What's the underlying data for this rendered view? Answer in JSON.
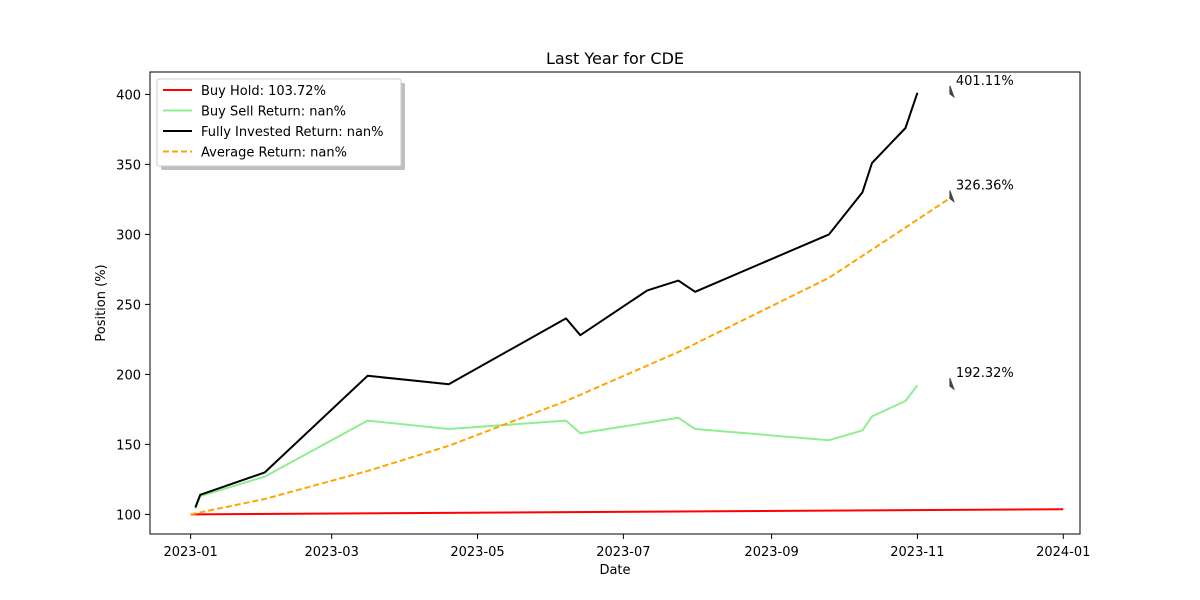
{
  "chart_data": {
    "type": "line",
    "title": "Last Year for CDE",
    "xlabel": "Date",
    "ylabel": "Position (%)",
    "xlim": [
      "2022-12-15",
      "2024-01-08"
    ],
    "ylim": [
      86,
      416
    ],
    "x_ticks": [
      {
        "date": "2023-01-01",
        "label": "2023-01"
      },
      {
        "date": "2023-03-01",
        "label": "2023-03"
      },
      {
        "date": "2023-05-01",
        "label": "2023-05"
      },
      {
        "date": "2023-07-01",
        "label": "2023-07"
      },
      {
        "date": "2023-09-01",
        "label": "2023-09"
      },
      {
        "date": "2023-11-01",
        "label": "2023-11"
      },
      {
        "date": "2024-01-01",
        "label": "2024-01"
      }
    ],
    "y_ticks": [
      100,
      150,
      200,
      250,
      300,
      350,
      400
    ],
    "grid": false,
    "legend_placement": "top-left",
    "series": [
      {
        "name": "Buy Hold: 103.72%",
        "color": "#ff0000",
        "dash": "solid",
        "x": [
          "2023-01-01",
          "2024-01-01"
        ],
        "y": [
          100,
          103.72
        ]
      },
      {
        "name": "Buy Sell Return: nan%",
        "color": "#90ee90",
        "dash": "solid",
        "x": [
          "2023-01-03",
          "2023-01-05",
          "2023-02-01",
          "2023-03-16",
          "2023-04-19",
          "2023-06-07",
          "2023-06-13",
          "2023-07-24",
          "2023-07-31",
          "2023-09-25",
          "2023-10-09",
          "2023-10-13",
          "2023-10-27",
          "2023-11-01"
        ],
        "y": [
          104,
          113,
          127,
          167,
          161,
          167,
          158,
          169,
          161,
          153,
          160,
          170,
          181,
          192.32
        ]
      },
      {
        "name": "Fully Invested Return: nan%",
        "color": "#000000",
        "dash": "solid",
        "x": [
          "2023-01-03",
          "2023-01-05",
          "2023-02-01",
          "2023-03-16",
          "2023-04-19",
          "2023-06-07",
          "2023-06-13",
          "2023-07-11",
          "2023-07-24",
          "2023-07-31",
          "2023-09-25",
          "2023-10-09",
          "2023-10-13",
          "2023-10-27",
          "2023-11-01"
        ],
        "y": [
          105,
          114,
          130,
          199,
          193,
          240,
          228,
          260,
          267,
          259,
          300,
          330,
          351,
          376,
          401.11
        ]
      },
      {
        "name": "Average Return: nan%",
        "color": "#ffa500",
        "dash": "dashed",
        "x": [
          "2023-01-01",
          "2023-02-01",
          "2023-03-16",
          "2023-04-19",
          "2023-06-07",
          "2023-07-24",
          "2023-09-25",
          "2023-10-20",
          "2023-11-15"
        ],
        "y": [
          100,
          111,
          131,
          149,
          181,
          216,
          269,
          297,
          326.36
        ]
      }
    ],
    "annotations": [
      {
        "text": "401.11%",
        "x": "2023-11-15",
        "y": 401.11,
        "color": "#000000"
      },
      {
        "text": "326.36%",
        "x": "2023-11-15",
        "y": 326.36,
        "color": "#ffa500"
      },
      {
        "text": "192.32%",
        "x": "2023-11-15",
        "y": 192.32,
        "color": "#90ee90"
      }
    ]
  }
}
